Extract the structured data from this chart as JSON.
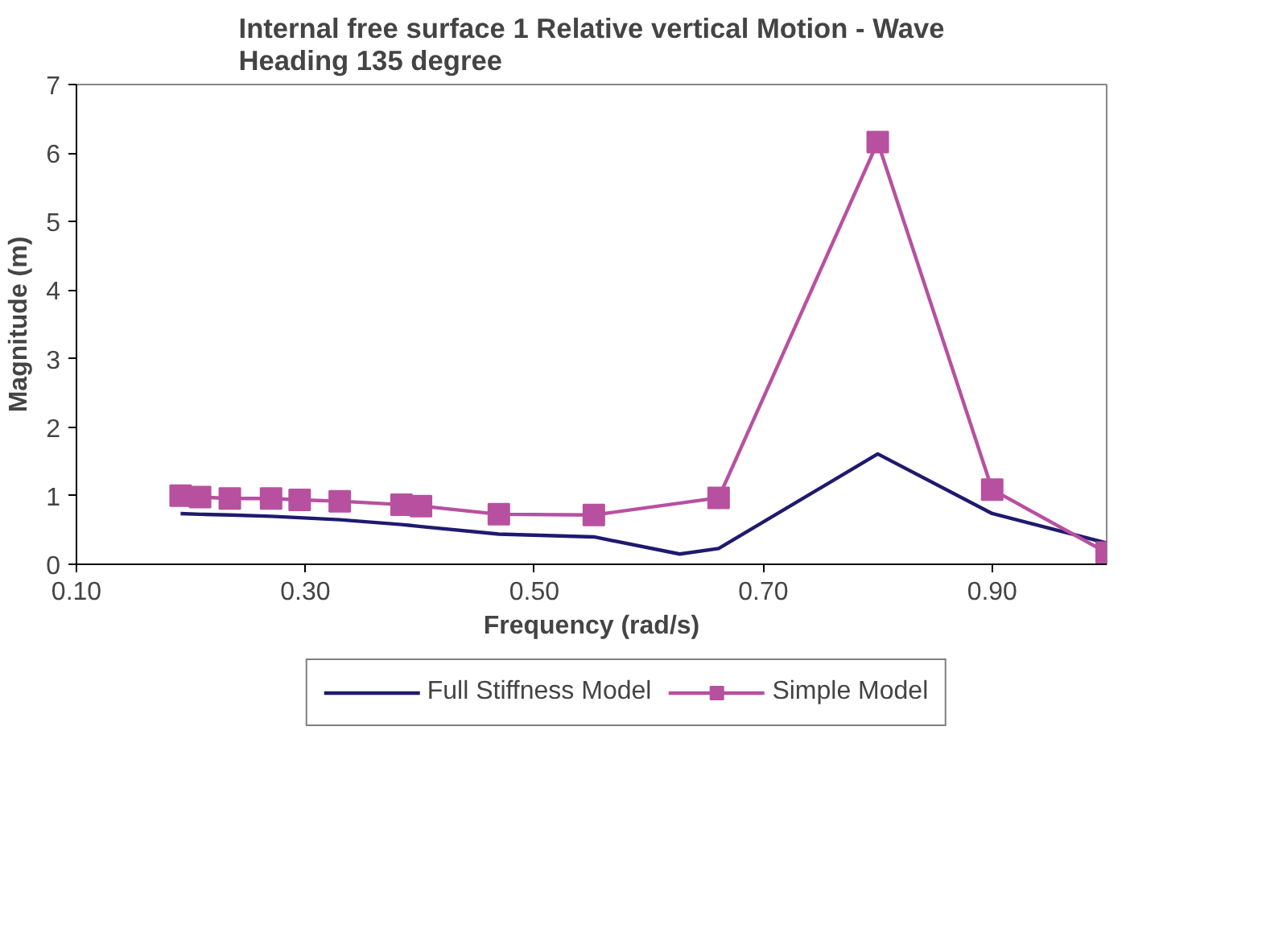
{
  "chart_data": {
    "type": "line",
    "title": "Internal free surface 1 Relative vertical Motion - Wave\nHeading 135 degree",
    "xlabel": "Frequency (rad/s)",
    "ylabel": "Magnitude (m)",
    "xlim": [
      0.1,
      1.0
    ],
    "xticks": [
      {
        "value": 0.1,
        "label": "0.10"
      },
      {
        "value": 0.3,
        "label": "0.30"
      },
      {
        "value": 0.5,
        "label": "0.50"
      },
      {
        "value": 0.7,
        "label": "0.70"
      },
      {
        "value": 0.9,
        "label": "0.90"
      }
    ],
    "ylim": [
      0,
      7
    ],
    "yticks": [
      0,
      1,
      2,
      3,
      4,
      5,
      6,
      7
    ],
    "grid": false,
    "legend": "bottom",
    "series": [
      {
        "name": "Full Stiffness Model",
        "color": "#1f1a6e",
        "marker": "none",
        "x": [
          0.191,
          0.208,
          0.234,
          0.27,
          0.295,
          0.33,
          0.384,
          0.401,
          0.469,
          0.552,
          0.627,
          0.661,
          0.8,
          0.9,
          1.0
        ],
        "values": [
          0.74,
          0.73,
          0.72,
          0.7,
          0.68,
          0.65,
          0.58,
          0.55,
          0.44,
          0.4,
          0.15,
          0.23,
          1.61,
          0.74,
          0.31
        ]
      },
      {
        "name": "Simple Model",
        "color": "#b850a0",
        "marker": "square",
        "x": [
          0.191,
          0.208,
          0.234,
          0.27,
          0.295,
          0.33,
          0.384,
          0.401,
          0.469,
          0.552,
          0.661,
          0.8,
          0.9,
          1.0
        ],
        "values": [
          1.0,
          0.98,
          0.96,
          0.96,
          0.94,
          0.92,
          0.87,
          0.85,
          0.73,
          0.72,
          0.97,
          6.16,
          1.09,
          0.17
        ]
      }
    ]
  }
}
